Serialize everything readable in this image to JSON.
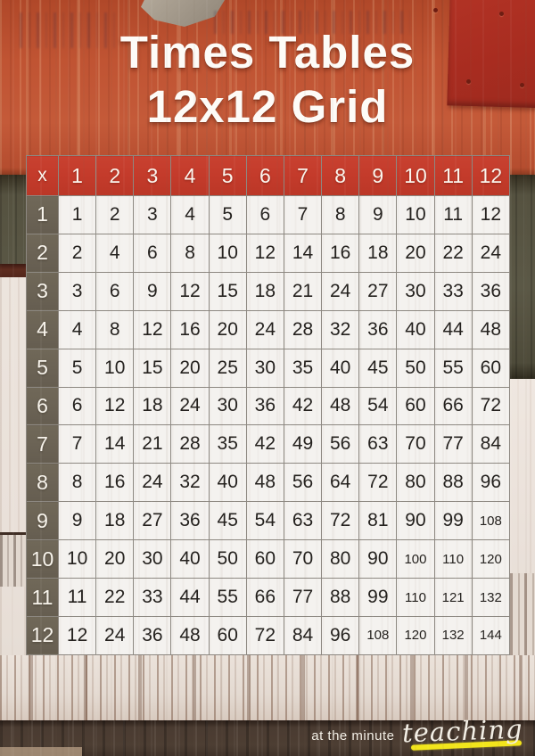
{
  "title": {
    "line1": "Times Tables",
    "line2": "12x12 Grid"
  },
  "table": {
    "corner": "x",
    "col_headers": [
      "1",
      "2",
      "3",
      "4",
      "5",
      "6",
      "7",
      "8",
      "9",
      "10",
      "11",
      "12"
    ],
    "row_headers": [
      "1",
      "2",
      "3",
      "4",
      "5",
      "6",
      "7",
      "8",
      "9",
      "10",
      "11",
      "12"
    ],
    "rows": [
      [
        1,
        2,
        3,
        4,
        5,
        6,
        7,
        8,
        9,
        10,
        11,
        12
      ],
      [
        2,
        4,
        6,
        8,
        10,
        12,
        14,
        16,
        18,
        20,
        22,
        24
      ],
      [
        3,
        6,
        9,
        12,
        15,
        18,
        21,
        24,
        27,
        30,
        33,
        36
      ],
      [
        4,
        8,
        12,
        16,
        20,
        24,
        28,
        32,
        36,
        40,
        44,
        48
      ],
      [
        5,
        10,
        15,
        20,
        25,
        30,
        35,
        40,
        45,
        50,
        55,
        60
      ],
      [
        6,
        12,
        18,
        24,
        30,
        36,
        42,
        48,
        54,
        60,
        66,
        72
      ],
      [
        7,
        14,
        21,
        28,
        35,
        42,
        49,
        56,
        63,
        70,
        77,
        84
      ],
      [
        8,
        16,
        24,
        32,
        40,
        48,
        56,
        64,
        72,
        80,
        88,
        96
      ],
      [
        9,
        18,
        27,
        36,
        45,
        54,
        63,
        72,
        81,
        90,
        99,
        108
      ],
      [
        10,
        20,
        30,
        40,
        50,
        60,
        70,
        80,
        90,
        100,
        110,
        120
      ],
      [
        11,
        22,
        33,
        44,
        55,
        66,
        77,
        88,
        99,
        110,
        121,
        132
      ],
      [
        12,
        24,
        36,
        48,
        60,
        72,
        84,
        96,
        108,
        120,
        132,
        144
      ]
    ]
  },
  "footer": {
    "tagline": "at the minute",
    "brand": "teaching"
  },
  "colors": {
    "header_red": "#c43b2b",
    "row_header_olive": "#6b6355",
    "cell_background": "#f4f1ee",
    "cell_text": "#24211e",
    "grid_line": "#8d8881",
    "title_text": "#fdfbf7",
    "brand_underline_yellow": "#f2e51c",
    "background_red": "#bf5233",
    "background_olive": "#565341",
    "background_dark_plank": "#46382f"
  }
}
